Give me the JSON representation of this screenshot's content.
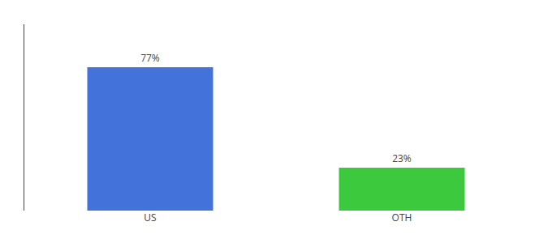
{
  "chart_data": {
    "type": "bar",
    "categories": [
      "US",
      "OTH"
    ],
    "values": [
      77,
      23
    ],
    "colors": [
      "#4472db",
      "#3dc93d"
    ],
    "value_labels": [
      "77%",
      "23%"
    ],
    "data_labels": true,
    "ylim": [
      0,
      100
    ],
    "grid": false,
    "tick_labels": "x"
  }
}
